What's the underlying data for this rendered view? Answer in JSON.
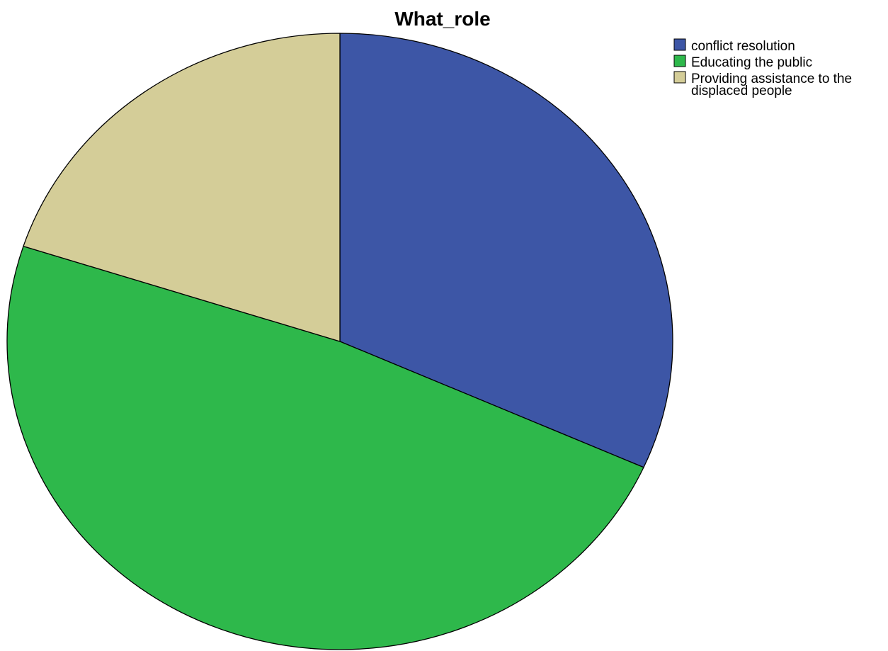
{
  "chart_data": {
    "type": "pie",
    "title": "What_role",
    "slices": [
      {
        "label": "conflict resolution",
        "value": 31.7,
        "color": "#3d56a6"
      },
      {
        "label": "Educating the public",
        "value": 48.3,
        "color": "#2eb84b"
      },
      {
        "label": "Providing assistance to the displaced people",
        "label_lines": [
          "Providing assistance to the",
          "displaced people"
        ],
        "value": 20.0,
        "color": "#d4cd98"
      }
    ],
    "start_angle": "12 o'clock",
    "direction": "clockwise",
    "legend_position": "top-right",
    "slice_border_color": "#000000"
  }
}
